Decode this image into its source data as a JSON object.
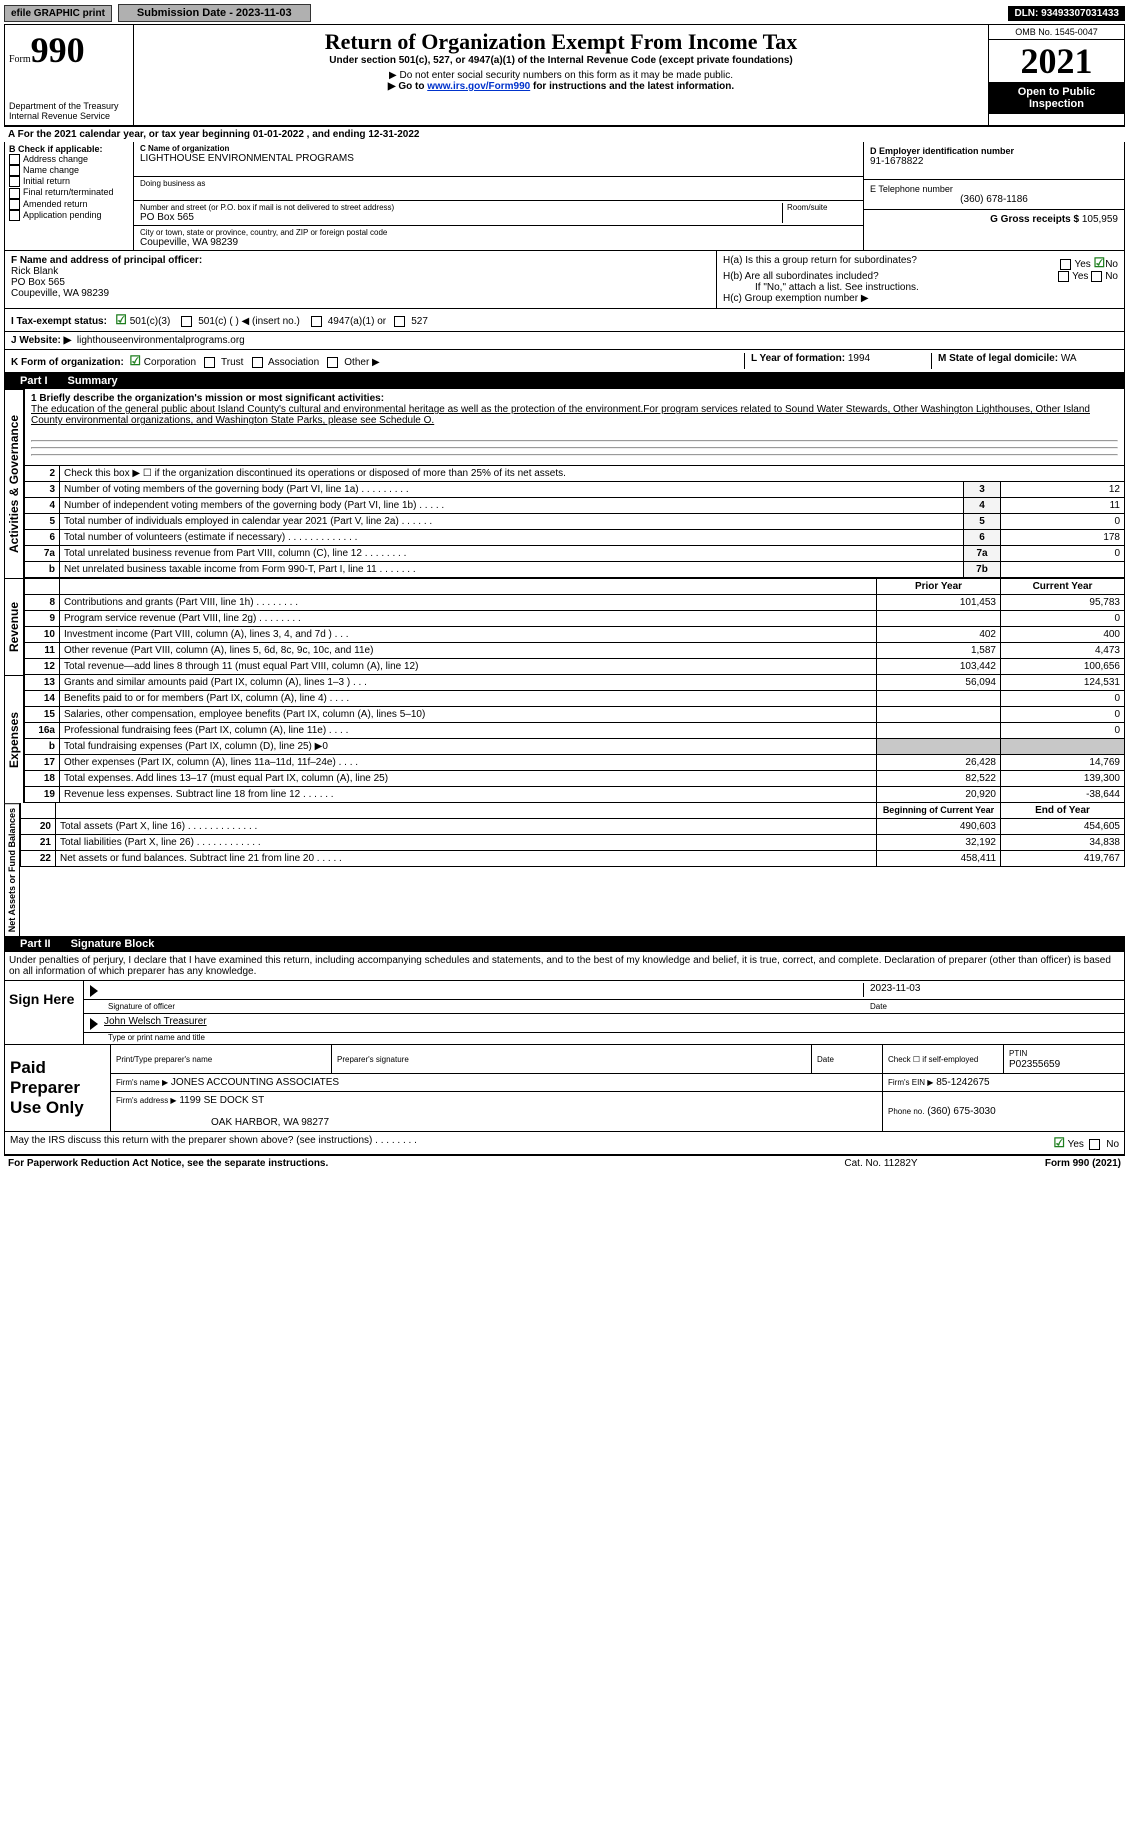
{
  "topbar": {
    "efile": "efile GRAPHIC print",
    "submission": "Submission Date - 2023-11-03",
    "dln": "DLN: 93493307031433"
  },
  "header": {
    "form_small": "Form",
    "form_num": "990",
    "dept": "Department of the Treasury",
    "irs": "Internal Revenue Service",
    "title": "Return of Organization Exempt From Income Tax",
    "subtitle": "Under section 501(c), 527, or 4947(a)(1) of the Internal Revenue Code (except private foundations)",
    "note1": "▶ Do not enter social security numbers on this form as it may be made public.",
    "note2_prefix": "▶ Go to ",
    "note2_link": "www.irs.gov/Form990",
    "note2_suffix": " for instructions and the latest information.",
    "omb": "OMB No. 1545-0047",
    "year": "2021",
    "open": "Open to Public Inspection"
  },
  "line_a": "A For the 2021 calendar year, or tax year beginning 01-01-2022     , and ending 12-31-2022",
  "b": {
    "label": "B Check if applicable:",
    "items": [
      "Address change",
      "Name change",
      "Initial return",
      "Final return/terminated",
      "Amended return",
      "Application pending"
    ]
  },
  "c": {
    "name_label": "C Name of organization",
    "name": "LIGHTHOUSE ENVIRONMENTAL PROGRAMS",
    "dba": "Doing business as",
    "street_label": "Number and street (or P.O. box if mail is not delivered to street address)",
    "room_label": "Room/suite",
    "street": "PO Box 565",
    "city_label": "City or town, state or province, country, and ZIP or foreign postal code",
    "city": "Coupeville, WA  98239"
  },
  "d": {
    "label": "D Employer identification number",
    "value": "91-1678822"
  },
  "e": {
    "label": "E Telephone number",
    "value": "(360) 678-1186"
  },
  "g": {
    "label": "G Gross receipts $",
    "value": "105,959"
  },
  "f": {
    "label": "F  Name and address of principal officer:",
    "name": "Rick Blank",
    "street": "PO Box 565",
    "city": "Coupeville, WA  98239"
  },
  "h": {
    "a": "H(a)  Is this a group return for subordinates?",
    "b": "H(b)  Are all subordinates included?",
    "ifno": "If \"No,\" attach a list. See instructions.",
    "c": "H(c)  Group exemption number ▶",
    "yes": "Yes",
    "no": "No"
  },
  "i": {
    "label": "I    Tax-exempt status:",
    "opts": [
      "501(c)(3)",
      "501(c) (   ) ◀ (insert no.)",
      "4947(a)(1) or",
      "527"
    ]
  },
  "j": {
    "label": "J   Website: ▶",
    "value": "lighthouseenvironmentalprograms.org"
  },
  "k": {
    "label": "K Form of organization:",
    "opts": [
      "Corporation",
      "Trust",
      "Association",
      "Other ▶"
    ]
  },
  "l": {
    "label": "L Year of formation:",
    "value": "1994"
  },
  "m": {
    "label": "M State of legal domicile:",
    "value": "WA"
  },
  "part1": {
    "label": "Part I",
    "title": "Summary"
  },
  "mission": {
    "q1": "1  Briefly describe the organization's mission or most significant activities:",
    "text": "The education of the general public about Island County's cultural and environmental heritage as well as the protection of the environment.For program services related to Sound Water Stewards, Other Washington Lighthouses, Other Island County environmental organizations, and Washington State Parks, please see Schedule O."
  },
  "gov_lines": [
    {
      "n": "2",
      "t": "Check this box ▶ ☐  if the organization discontinued its operations or disposed of more than 25% of its net assets."
    },
    {
      "n": "3",
      "t": "Number of voting members of the governing body (Part VI, line 1a)   .    .    .    .    .    .    .    .    .",
      "box": "3",
      "v": "12"
    },
    {
      "n": "4",
      "t": "Number of independent voting members of the governing body (Part VI, line 1b)   .    .    .    .    .",
      "box": "4",
      "v": "11"
    },
    {
      "n": "5",
      "t": "Total number of individuals employed in calendar year 2021 (Part V, line 2a)   .    .    .    .    .    .",
      "box": "5",
      "v": "0"
    },
    {
      "n": "6",
      "t": "Total number of volunteers (estimate if necessary)    .    .    .    .    .    .    .    .    .    .    .    .    .",
      "box": "6",
      "v": "178"
    },
    {
      "n": "7a",
      "t": "Total unrelated business revenue from Part VIII, column (C), line 12   .    .    .    .    .    .    .    .",
      "box": "7a",
      "v": "0"
    },
    {
      "n": "b",
      "t": "Net unrelated business taxable income from Form 990-T, Part I, line 11    .    .    .    .    .    .    .",
      "box": "7b",
      "v": ""
    }
  ],
  "rev_header": {
    "py": "Prior Year",
    "cy": "Current Year"
  },
  "rev_lines": [
    {
      "n": "8",
      "t": "Contributions and grants (Part VIII, line 1h)   .    .    .    .    .    .    .    .",
      "py": "101,453",
      "cy": "95,783"
    },
    {
      "n": "9",
      "t": "Program service revenue (Part VIII, line 2g)   .    .    .    .    .    .    .    .",
      "py": "",
      "cy": "0"
    },
    {
      "n": "10",
      "t": "Investment income (Part VIII, column (A), lines 3, 4, and 7d )   .    .    .",
      "py": "402",
      "cy": "400"
    },
    {
      "n": "11",
      "t": "Other revenue (Part VIII, column (A), lines 5, 6d, 8c, 9c, 10c, and 11e)",
      "py": "1,587",
      "cy": "4,473"
    },
    {
      "n": "12",
      "t": "Total revenue—add lines 8 through 11 (must equal Part VIII, column (A), line 12)",
      "py": "103,442",
      "cy": "100,656"
    }
  ],
  "exp_lines": [
    {
      "n": "13",
      "t": "Grants and similar amounts paid (Part IX, column (A), lines 1–3 )   .    .    .",
      "py": "56,094",
      "cy": "124,531"
    },
    {
      "n": "14",
      "t": "Benefits paid to or for members (Part IX, column (A), line 4)   .    .    .    .",
      "py": "",
      "cy": "0"
    },
    {
      "n": "15",
      "t": "Salaries, other compensation, employee benefits (Part IX, column (A), lines 5–10)",
      "py": "",
      "cy": "0"
    },
    {
      "n": "16a",
      "t": "Professional fundraising fees (Part IX, column (A), line 11e)   .    .    .    .",
      "py": "",
      "cy": "0"
    },
    {
      "n": "b",
      "t": "Total fundraising expenses (Part IX, column (D), line 25) ▶0",
      "py": "shaded",
      "cy": "shaded"
    },
    {
      "n": "17",
      "t": "Other expenses (Part IX, column (A), lines 11a–11d, 11f–24e)    .    .    .    .",
      "py": "26,428",
      "cy": "14,769"
    },
    {
      "n": "18",
      "t": "Total expenses. Add lines 13–17 (must equal Part IX, column (A), line 25)",
      "py": "82,522",
      "cy": "139,300"
    },
    {
      "n": "19",
      "t": "Revenue less expenses. Subtract line 18 from line 12   .    .    .    .    .    .",
      "py": "20,920",
      "cy": "-38,644"
    }
  ],
  "na_header": {
    "b": "Beginning of Current Year",
    "e": "End of Year"
  },
  "na_lines": [
    {
      "n": "20",
      "t": "Total assets (Part X, line 16)  .    .    .    .    .    .    .    .    .    .    .    .    .",
      "b": "490,603",
      "e": "454,605"
    },
    {
      "n": "21",
      "t": "Total liabilities (Part X, line 26)   .    .    .    .    .    .    .    .    .    .    .    .",
      "b": "32,192",
      "e": "34,838"
    },
    {
      "n": "22",
      "t": "Net assets or fund balances. Subtract line 21 from line 20   .    .    .    .    .",
      "b": "458,411",
      "e": "419,767"
    }
  ],
  "part2": {
    "label": "Part II",
    "title": "Signature Block"
  },
  "penalties": "Under penalties of perjury, I declare that I have examined this return, including accompanying schedules and statements, and to the best of my knowledge and belief, it is true, correct, and complete. Declaration of preparer (other than officer) is based on all information of which preparer has any knowledge.",
  "sign": {
    "here": "Sign Here",
    "sig_officer": "Signature of officer",
    "date": "Date",
    "date_val": "2023-11-03",
    "name": "John Welsch  Treasurer",
    "type_print": "Type or print name and title"
  },
  "paid": {
    "label": "Paid Preparer Use Only",
    "h1": "Print/Type preparer's name",
    "h2": "Preparer's signature",
    "h3": "Date",
    "h4": "Check ☐ if self-employed",
    "ptin_label": "PTIN",
    "ptin": "P02355659",
    "firm_name_label": "Firm's name    ▶",
    "firm_name": "JONES ACCOUNTING ASSOCIATES",
    "firm_ein_label": "Firm's EIN ▶",
    "firm_ein": "85-1242675",
    "firm_addr_label": "Firm's address ▶",
    "firm_addr1": "1199 SE DOCK ST",
    "firm_addr2": "OAK HARBOR, WA  98277",
    "phone_label": "Phone no.",
    "phone": "(360) 675-3030"
  },
  "may_irs": "May the IRS discuss this return with the preparer shown above? (see instructions)    .    .    .    .    .    .    .    .",
  "footer": {
    "paperwork": "For Paperwork Reduction Act Notice, see the separate instructions.",
    "cat": "Cat. No. 11282Y",
    "form": "Form 990 (2021)"
  },
  "vlabels": {
    "gov": "Activities & Governance",
    "rev": "Revenue",
    "exp": "Expenses",
    "na": "Net Assets or Fund Balances"
  }
}
